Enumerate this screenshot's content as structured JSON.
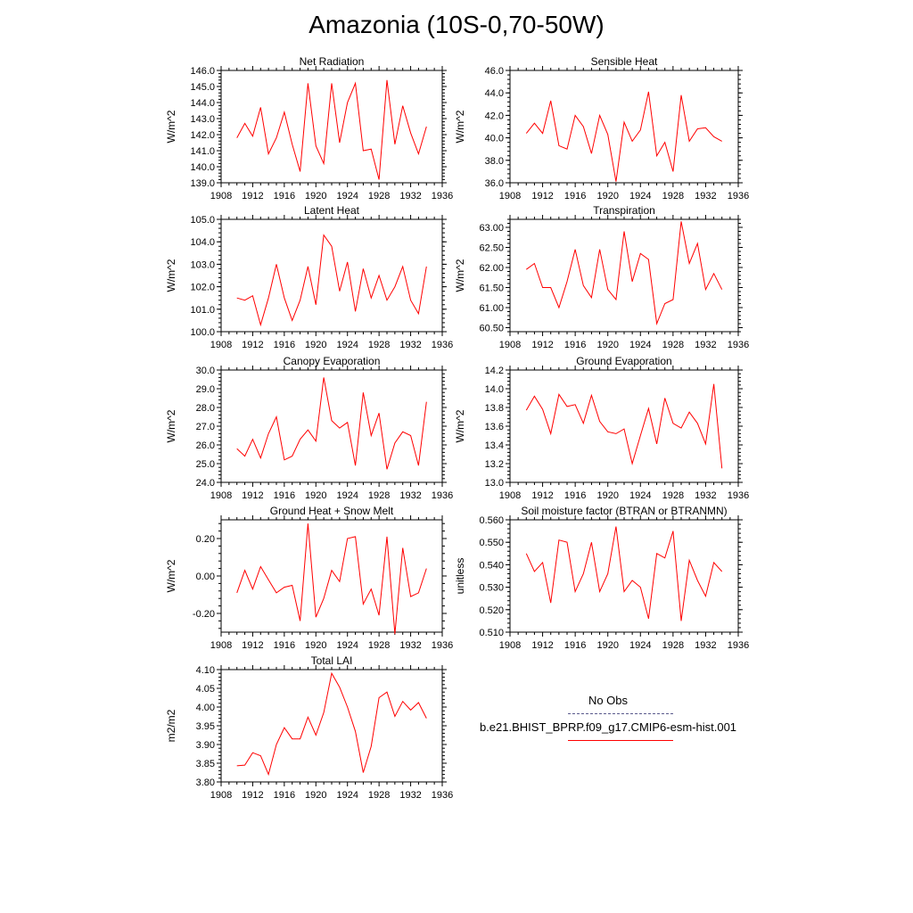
{
  "title": "Amazonia (10S-0,70-50W)",
  "line_color": "#ff0000",
  "obs_line_color": "#5a5a8c",
  "legend": {
    "obs_label": "No Obs",
    "model_label": "b.e21.BHIST_BPRP.f09_g17.CMIP6-esm-hist.001"
  },
  "chart_data": [
    {
      "type": "line",
      "title": "Net Radiation",
      "ylabel": "W/m^2",
      "xlim": [
        1908,
        1936
      ],
      "ylim": [
        139.0,
        146.0
      ],
      "xticks": [
        1908,
        1912,
        1916,
        1920,
        1924,
        1928,
        1932,
        1936
      ],
      "yticks": [
        139.0,
        140.0,
        141.0,
        142.0,
        143.0,
        144.0,
        145.0,
        146.0
      ],
      "ydecimals": 1,
      "x": [
        1910,
        1911,
        1912,
        1913,
        1914,
        1915,
        1916,
        1917,
        1918,
        1919,
        1920,
        1921,
        1922,
        1923,
        1924,
        1925,
        1926,
        1927,
        1928,
        1929,
        1930,
        1931,
        1932,
        1933,
        1934
      ],
      "y": [
        141.8,
        142.7,
        141.9,
        143.7,
        140.8,
        141.8,
        143.4,
        141.4,
        139.7,
        145.2,
        141.3,
        140.2,
        145.2,
        141.5,
        144.0,
        145.2,
        141.0,
        141.1,
        139.2,
        145.4,
        141.4,
        143.8,
        142.1,
        140.8,
        142.5
      ]
    },
    {
      "type": "line",
      "title": "Sensible Heat",
      "ylabel": "W/m^2",
      "xlim": [
        1908,
        1936
      ],
      "ylim": [
        36.0,
        46.0
      ],
      "xticks": [
        1908,
        1912,
        1916,
        1920,
        1924,
        1928,
        1932,
        1936
      ],
      "yticks": [
        36.0,
        38.0,
        40.0,
        42.0,
        44.0,
        46.0
      ],
      "ydecimals": 1,
      "x": [
        1910,
        1911,
        1912,
        1913,
        1914,
        1915,
        1916,
        1917,
        1918,
        1919,
        1920,
        1921,
        1922,
        1923,
        1924,
        1925,
        1926,
        1927,
        1928,
        1929,
        1930,
        1931,
        1932,
        1933,
        1934
      ],
      "y": [
        40.4,
        41.3,
        40.4,
        43.3,
        39.3,
        39.0,
        42.0,
        41.0,
        38.6,
        42.0,
        40.3,
        36.1,
        41.4,
        39.7,
        40.7,
        44.1,
        38.4,
        39.6,
        37.0,
        43.8,
        39.7,
        40.8,
        40.9,
        40.1,
        39.7
      ]
    },
    {
      "type": "line",
      "title": "Latent Heat",
      "ylabel": "W/m^2",
      "xlim": [
        1908,
        1936
      ],
      "ylim": [
        100.0,
        105.0
      ],
      "xticks": [
        1908,
        1912,
        1916,
        1920,
        1924,
        1928,
        1932,
        1936
      ],
      "yticks": [
        100.0,
        101.0,
        102.0,
        103.0,
        104.0,
        105.0
      ],
      "ydecimals": 1,
      "x": [
        1910,
        1911,
        1912,
        1913,
        1914,
        1915,
        1916,
        1917,
        1918,
        1919,
        1920,
        1921,
        1922,
        1923,
        1924,
        1925,
        1926,
        1927,
        1928,
        1929,
        1930,
        1931,
        1932,
        1933,
        1934
      ],
      "y": [
        101.5,
        101.4,
        101.6,
        100.3,
        101.5,
        103.0,
        101.5,
        100.5,
        101.4,
        102.9,
        101.2,
        104.3,
        103.8,
        101.8,
        103.1,
        100.9,
        102.8,
        101.5,
        102.5,
        101.4,
        102.0,
        102.9,
        101.4,
        100.8,
        102.9
      ]
    },
    {
      "type": "line",
      "title": "Transpiration",
      "ylabel": "W/m^2",
      "xlim": [
        1908,
        1936
      ],
      "ylim": [
        60.4,
        63.2
      ],
      "xticks": [
        1908,
        1912,
        1916,
        1920,
        1924,
        1928,
        1932,
        1936
      ],
      "yticks": [
        60.5,
        61.0,
        61.5,
        62.0,
        62.5,
        63.0
      ],
      "ydecimals": 2,
      "x": [
        1910,
        1911,
        1912,
        1913,
        1914,
        1915,
        1916,
        1917,
        1918,
        1919,
        1920,
        1921,
        1922,
        1923,
        1924,
        1925,
        1926,
        1927,
        1928,
        1929,
        1930,
        1931,
        1932,
        1933,
        1934
      ],
      "y": [
        61.95,
        62.1,
        61.5,
        61.5,
        61.0,
        61.65,
        62.45,
        61.55,
        61.25,
        62.45,
        61.45,
        61.2,
        62.9,
        61.65,
        62.35,
        62.2,
        60.6,
        61.1,
        61.2,
        63.15,
        62.1,
        62.6,
        61.45,
        61.85,
        61.45
      ]
    },
    {
      "type": "line",
      "title": "Canopy Evaporation",
      "ylabel": "W/m^2",
      "xlim": [
        1908,
        1936
      ],
      "ylim": [
        24.0,
        30.0
      ],
      "xticks": [
        1908,
        1912,
        1916,
        1920,
        1924,
        1928,
        1932,
        1936
      ],
      "yticks": [
        24.0,
        25.0,
        26.0,
        27.0,
        28.0,
        29.0,
        30.0
      ],
      "ydecimals": 1,
      "x": [
        1910,
        1911,
        1912,
        1913,
        1914,
        1915,
        1916,
        1917,
        1918,
        1919,
        1920,
        1921,
        1922,
        1923,
        1924,
        1925,
        1926,
        1927,
        1928,
        1929,
        1930,
        1931,
        1932,
        1933,
        1934
      ],
      "y": [
        25.8,
        25.4,
        26.3,
        25.3,
        26.6,
        27.5,
        25.2,
        25.4,
        26.3,
        26.8,
        26.2,
        29.6,
        27.3,
        26.9,
        27.2,
        24.9,
        28.8,
        26.5,
        27.7,
        24.7,
        26.1,
        26.7,
        26.5,
        24.9,
        28.3
      ]
    },
    {
      "type": "line",
      "title": "Ground Evaporation",
      "ylabel": "W/m^2",
      "xlim": [
        1908,
        1936
      ],
      "ylim": [
        13.0,
        14.2
      ],
      "xticks": [
        1908,
        1912,
        1916,
        1920,
        1924,
        1928,
        1932,
        1936
      ],
      "yticks": [
        13.0,
        13.2,
        13.4,
        13.6,
        13.8,
        14.0,
        14.2
      ],
      "ydecimals": 1,
      "x": [
        1910,
        1911,
        1912,
        1913,
        1914,
        1915,
        1916,
        1917,
        1918,
        1919,
        1920,
        1921,
        1922,
        1923,
        1924,
        1925,
        1926,
        1927,
        1928,
        1929,
        1930,
        1931,
        1932,
        1933,
        1934
      ],
      "y": [
        13.77,
        13.92,
        13.78,
        13.52,
        13.94,
        13.81,
        13.83,
        13.63,
        13.93,
        13.65,
        13.54,
        13.52,
        13.57,
        13.2,
        13.5,
        13.79,
        13.41,
        13.9,
        13.63,
        13.58,
        13.75,
        13.63,
        13.41,
        14.05,
        13.15
      ]
    },
    {
      "type": "line",
      "title": "Ground Heat + Snow Melt",
      "ylabel": "W/m^2",
      "xlim": [
        1908,
        1936
      ],
      "ylim": [
        -0.3,
        0.3
      ],
      "xticks": [
        1908,
        1912,
        1916,
        1920,
        1924,
        1928,
        1932,
        1936
      ],
      "yticks": [
        -0.2,
        0.0,
        0.2
      ],
      "ydecimals": 2,
      "x": [
        1910,
        1911,
        1912,
        1913,
        1914,
        1915,
        1916,
        1917,
        1918,
        1919,
        1920,
        1921,
        1922,
        1923,
        1924,
        1925,
        1926,
        1927,
        1928,
        1929,
        1930,
        1931,
        1932,
        1933,
        1934
      ],
      "y": [
        -0.09,
        0.03,
        -0.07,
        0.05,
        -0.02,
        -0.09,
        -0.06,
        -0.05,
        -0.24,
        0.28,
        -0.22,
        -0.12,
        0.03,
        -0.03,
        0.2,
        0.21,
        -0.15,
        -0.07,
        -0.21,
        0.21,
        -0.31,
        0.15,
        -0.11,
        -0.09,
        0.04
      ]
    },
    {
      "type": "line",
      "title": "Soil moisture factor (BTRAN or BTRANMN)",
      "ylabel": "unitless",
      "xlim": [
        1908,
        1936
      ],
      "ylim": [
        0.51,
        0.56
      ],
      "xticks": [
        1908,
        1912,
        1916,
        1920,
        1924,
        1928,
        1932,
        1936
      ],
      "yticks": [
        0.51,
        0.52,
        0.53,
        0.54,
        0.55,
        0.56
      ],
      "ydecimals": 3,
      "x": [
        1910,
        1911,
        1912,
        1913,
        1914,
        1915,
        1916,
        1917,
        1918,
        1919,
        1920,
        1921,
        1922,
        1923,
        1924,
        1925,
        1926,
        1927,
        1928,
        1929,
        1930,
        1931,
        1932,
        1933,
        1934
      ],
      "y": [
        0.545,
        0.537,
        0.541,
        0.523,
        0.551,
        0.55,
        0.528,
        0.536,
        0.55,
        0.528,
        0.536,
        0.557,
        0.528,
        0.533,
        0.53,
        0.516,
        0.545,
        0.543,
        0.555,
        0.515,
        0.542,
        0.533,
        0.526,
        0.541,
        0.537
      ]
    },
    {
      "type": "line",
      "title": "Total LAI",
      "ylabel": "m2/m2",
      "xlim": [
        1908,
        1936
      ],
      "ylim": [
        3.8,
        4.1
      ],
      "xticks": [
        1908,
        1912,
        1916,
        1920,
        1924,
        1928,
        1932,
        1936
      ],
      "yticks": [
        3.8,
        3.85,
        3.9,
        3.95,
        4.0,
        4.05,
        4.1
      ],
      "ydecimals": 2,
      "x": [
        1910,
        1911,
        1912,
        1913,
        1914,
        1915,
        1916,
        1917,
        1918,
        1919,
        1920,
        1921,
        1922,
        1923,
        1924,
        1925,
        1926,
        1927,
        1928,
        1929,
        1930,
        1931,
        1932,
        1933,
        1934
      ],
      "y": [
        3.843,
        3.845,
        3.878,
        3.87,
        3.82,
        3.9,
        3.945,
        3.915,
        3.915,
        3.973,
        3.925,
        3.985,
        4.09,
        4.053,
        4.0,
        3.935,
        3.825,
        3.895,
        4.025,
        4.04,
        3.975,
        4.015,
        3.992,
        4.012,
        3.97
      ]
    }
  ]
}
